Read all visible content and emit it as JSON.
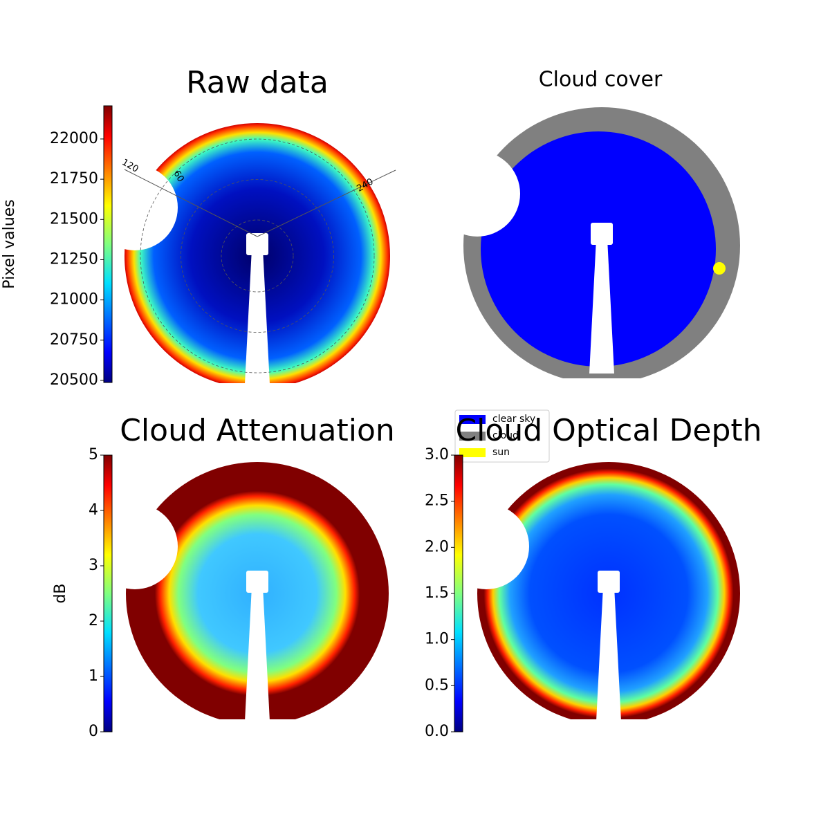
{
  "chart_data": [
    {
      "type": "heatmap",
      "title": "Raw data",
      "colormap": "jet",
      "colorbar": {
        "label": "Pixel values",
        "lim": [
          20487,
          22206
        ],
        "ticks": [
          20500,
          20750,
          21000,
          21250,
          21500,
          21750,
          22000
        ]
      },
      "polar_labels": [
        "120",
        "60",
        "240"
      ]
    },
    {
      "type": "classification",
      "title": "Cloud cover",
      "legend": [
        {
          "name": "clear sky",
          "color": "#0000ff"
        },
        {
          "name": "cloud",
          "color": "#808080"
        },
        {
          "name": "sun",
          "color": "#ffff00"
        }
      ]
    },
    {
      "type": "heatmap",
      "title": "Cloud Attenuation",
      "colormap": "jet",
      "colorbar": {
        "label": "dB",
        "lim": [
          0,
          5
        ],
        "ticks": [
          0,
          1,
          2,
          3,
          4,
          5
        ]
      }
    },
    {
      "type": "heatmap",
      "title": "Cloud Optical Depth",
      "colormap": "jet",
      "colorbar": {
        "lim": [
          0,
          3
        ],
        "ticks": [
          {
            "value": 0,
            "label": "0.0"
          },
          {
            "value": 0.5,
            "label": "0.5"
          },
          {
            "value": 1,
            "label": "1.0"
          },
          {
            "value": 1.5,
            "label": "1.5"
          },
          {
            "value": 2,
            "label": "2.0"
          },
          {
            "value": 2.5,
            "label": "2.5"
          },
          {
            "value": 3,
            "label": "3.0"
          }
        ]
      }
    }
  ]
}
